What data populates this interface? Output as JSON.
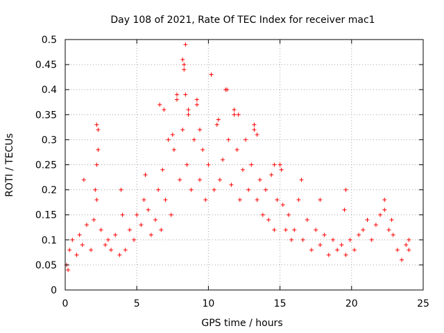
{
  "chart_data": {
    "type": "scatter",
    "title": "Day 108 of 2021, Rate Of TEC Index for receiver mac1",
    "xlabel": "GPS time / hours",
    "ylabel": "ROTI / TECUs",
    "xlim": [
      0,
      25
    ],
    "ylim": [
      0,
      0.5
    ],
    "xticks": [
      0,
      5,
      10,
      15,
      20,
      25
    ],
    "xtick_labels": [
      "0",
      "5",
      "10",
      "15",
      "20",
      "25"
    ],
    "yticks": [
      0,
      0.05,
      0.1,
      0.15,
      0.2,
      0.25,
      0.3,
      0.35,
      0.4,
      0.45,
      0.5
    ],
    "ytick_labels": [
      "0",
      "0.05",
      "0.1",
      "0.15",
      "0.2",
      "0.25",
      "0.3",
      "0.35",
      "0.4",
      "0.45",
      "0.5"
    ],
    "grid": true,
    "marker": "plus",
    "color": "#ff0000",
    "series": [
      {
        "x": [
          0.1,
          0.3,
          0.5,
          0.8,
          1.0,
          1.2,
          1.5,
          1.8,
          2.0,
          2.2,
          2.2,
          2.3,
          2.2,
          2.5,
          2.8,
          3.0,
          3.2,
          3.5,
          3.8,
          4.0,
          4.2,
          4.5,
          4.8,
          5.0,
          5.3,
          5.5,
          5.6,
          5.8,
          6.0,
          6.3,
          6.5,
          6.7,
          6.8,
          7.0,
          7.2,
          7.4,
          7.6,
          7.8,
          8.0,
          8.2,
          8.3,
          8.4,
          8.5,
          8.6,
          8.8,
          9.0,
          9.2,
          9.4,
          9.6,
          9.8,
          10.0,
          10.2,
          10.4,
          10.6,
          10.8,
          11.0,
          11.2,
          11.4,
          11.6,
          11.8,
          12.0,
          12.2,
          12.4,
          12.6,
          12.8,
          13.0,
          13.2,
          13.4,
          13.6,
          13.8,
          14.0,
          14.2,
          14.4,
          14.6,
          14.8,
          15.0,
          15.2,
          15.4,
          15.6,
          15.8,
          16.0,
          16.3,
          16.6,
          16.9,
          17.2,
          17.5,
          17.8,
          18.1,
          18.4,
          18.7,
          19.0,
          19.3,
          19.6,
          19.9,
          20.2,
          20.5,
          20.8,
          21.1,
          21.4,
          21.7,
          22.0,
          22.3,
          22.6,
          22.9,
          23.2,
          23.5,
          23.8,
          24.0,
          0.2,
          1.3,
          2.1,
          2.3,
          3.9,
          5.6,
          6.6,
          6.9,
          7.5,
          7.8,
          8.2,
          8.3,
          8.4,
          8.6,
          9.2,
          9.4,
          10.2,
          10.7,
          11.3,
          11.8,
          12.1,
          13.2,
          13.4,
          14.6,
          15.1,
          16.5,
          17.8,
          19.6,
          19.5,
          22.3,
          22.8,
          24.0
        ],
        "y": [
          0.05,
          0.08,
          0.1,
          0.07,
          0.11,
          0.09,
          0.13,
          0.08,
          0.14,
          0.25,
          0.33,
          0.28,
          0.18,
          0.12,
          0.09,
          0.1,
          0.08,
          0.11,
          0.07,
          0.15,
          0.08,
          0.12,
          0.1,
          0.15,
          0.13,
          0.18,
          0.23,
          0.16,
          0.11,
          0.14,
          0.2,
          0.12,
          0.24,
          0.18,
          0.3,
          0.15,
          0.28,
          0.38,
          0.22,
          0.32,
          0.45,
          0.39,
          0.25,
          0.35,
          0.2,
          0.3,
          0.38,
          0.22,
          0.28,
          0.18,
          0.25,
          0.43,
          0.2,
          0.33,
          0.22,
          0.26,
          0.4,
          0.3,
          0.21,
          0.35,
          0.28,
          0.18,
          0.24,
          0.3,
          0.2,
          0.25,
          0.32,
          0.18,
          0.22,
          0.15,
          0.2,
          0.14,
          0.23,
          0.12,
          0.18,
          0.25,
          0.17,
          0.12,
          0.15,
          0.1,
          0.12,
          0.18,
          0.1,
          0.14,
          0.08,
          0.12,
          0.09,
          0.11,
          0.07,
          0.1,
          0.08,
          0.09,
          0.07,
          0.1,
          0.08,
          0.11,
          0.12,
          0.14,
          0.1,
          0.13,
          0.15,
          0.16,
          0.12,
          0.11,
          0.08,
          0.06,
          0.09,
          0.08,
          0.04,
          0.22,
          0.2,
          0.32,
          0.2,
          0.23,
          0.37,
          0.36,
          0.31,
          0.39,
          0.46,
          0.44,
          0.49,
          0.36,
          0.37,
          0.32,
          0.43,
          0.34,
          0.4,
          0.36,
          0.35,
          0.33,
          0.31,
          0.25,
          0.24,
          0.22,
          0.18,
          0.2,
          0.16,
          0.18,
          0.14,
          0.1
        ]
      }
    ]
  }
}
